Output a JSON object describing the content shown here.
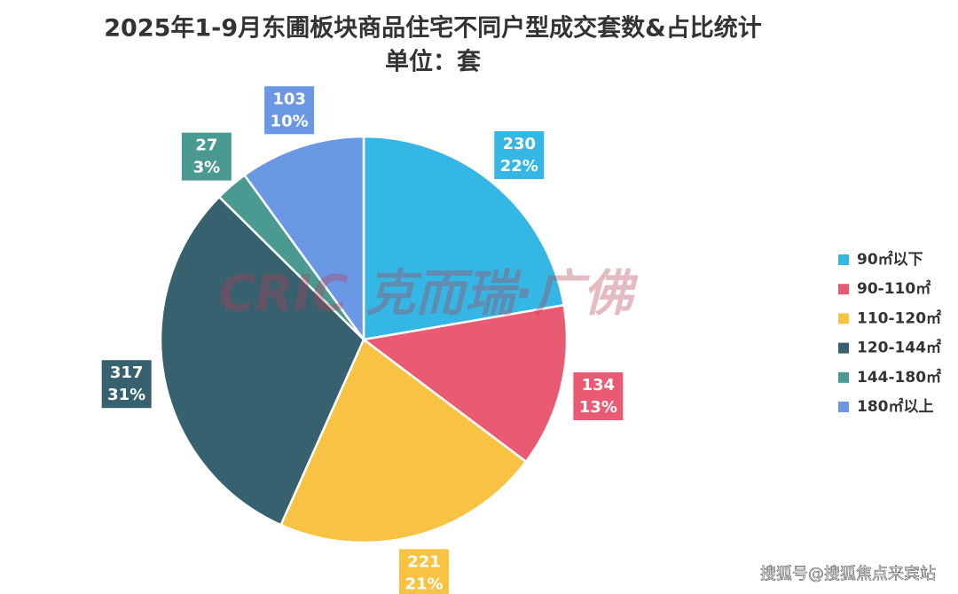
{
  "chart_data": {
    "type": "pie",
    "title": "2025年1-9月东圃板块商品住宅不同户型成交套数&占比统计",
    "subtitle": "单位：套",
    "categories": [
      "90㎡以下",
      "90-110㎡",
      "110-120㎡",
      "120-144㎡",
      "144-180㎡",
      "180㎡以上"
    ],
    "values": [
      230,
      134,
      221,
      317,
      27,
      103
    ],
    "percent_labels": [
      "22%",
      "13%",
      "21%",
      "31%",
      "3%",
      "10%"
    ],
    "colors": [
      "#35b7e5",
      "#e95a73",
      "#f8c343",
      "#37616f",
      "#4a9a92",
      "#6a98e4"
    ],
    "legend": "right",
    "watermark": "CRIC 克而瑞·广佛",
    "footer_credit": "搜狐号@搜狐焦点来宾站"
  }
}
